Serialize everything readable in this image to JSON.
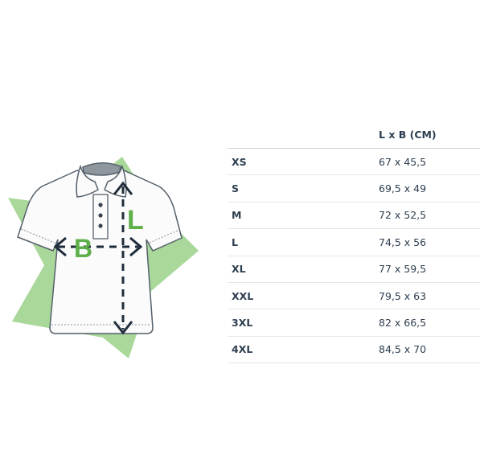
{
  "illustration": {
    "length_letter": "L",
    "width_letter": "B",
    "colors": {
      "accent": "#5fb04a",
      "accent_light": "#a9d89a",
      "arrow": "#1f2c3a",
      "outline": "#55606b",
      "shirt": "#fbfbfb"
    }
  },
  "table": {
    "header": "L x B (CM)",
    "rows": [
      {
        "size": "XS",
        "value": "67 x 45,5"
      },
      {
        "size": "S",
        "value": "69,5 x 49"
      },
      {
        "size": "M",
        "value": "72 x 52,5"
      },
      {
        "size": "L",
        "value": "74,5 x 56"
      },
      {
        "size": "XL",
        "value": "77 x 59,5"
      },
      {
        "size": "XXL",
        "value": "79,5 x 63"
      },
      {
        "size": "3XL",
        "value": "82 x 66,5"
      },
      {
        "size": "4XL",
        "value": "84,5 x 70"
      }
    ]
  }
}
